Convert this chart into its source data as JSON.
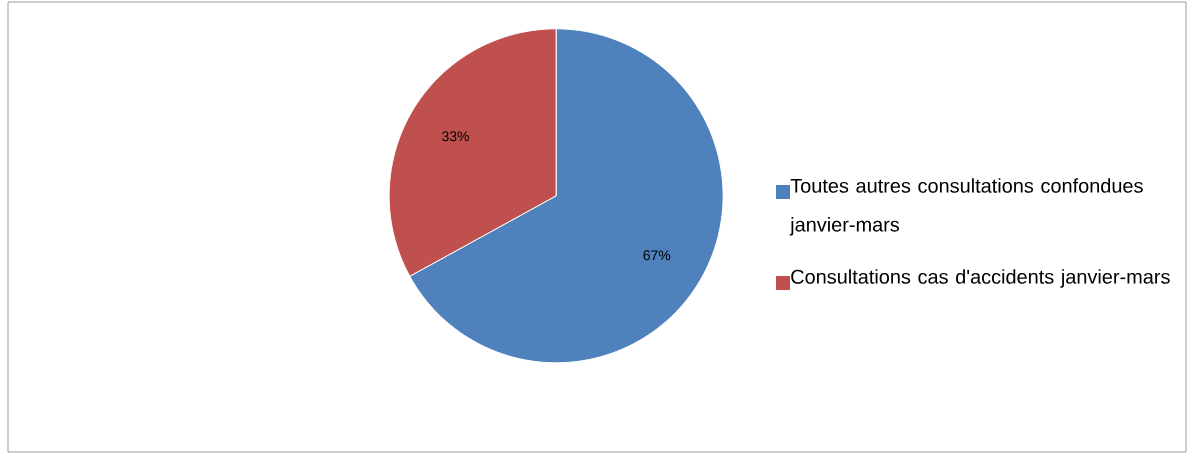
{
  "chart_data": {
    "type": "pie",
    "categories": [
      "Toutes autres consultations confondues janvier-mars",
      "Consultations cas d'accidents janvier-mars"
    ],
    "values": [
      67,
      33
    ],
    "colors": [
      "#4f81bd",
      "#c0504d"
    ],
    "value_labels": [
      "67%",
      "33%"
    ],
    "legend": "right"
  }
}
